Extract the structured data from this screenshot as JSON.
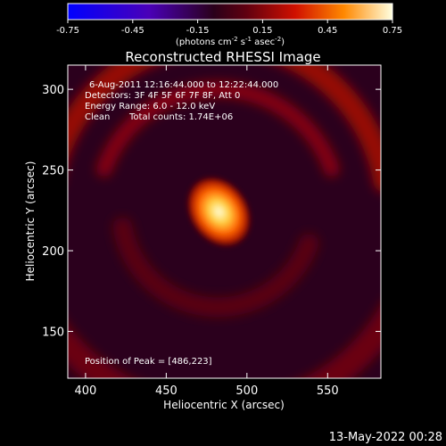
{
  "chart_data": {
    "type": "heatmap",
    "title": "Reconstructed RHESSI Image",
    "xlabel": "Heliocentric X (arcsec)",
    "ylabel": "Heliocentric Y (arcsec)",
    "xlim": [
      389,
      583
    ],
    "ylim": [
      121,
      315
    ],
    "x_ticks": [
      400,
      450,
      500,
      550
    ],
    "y_ticks": [
      150,
      200,
      250,
      300
    ],
    "colorbar": {
      "min": -0.75,
      "max": 0.75,
      "ticks": [
        "-0.75",
        "-0.45",
        "-0.15",
        "0.15",
        "0.45",
        "0.75"
      ],
      "units_prefix": "(photons cm",
      "units_exp1": "-2",
      "units_mid1": " s",
      "units_exp2": "-1",
      "units_mid2": " asec",
      "units_exp3": "-2",
      "units_suffix": ")"
    },
    "annotations": {
      "time_range": "6-Aug-2011 12:16:44.000 to 12:22:44.000",
      "detectors": "Detectors: 3F 4F 5F 6F 7F 8F, Att 0",
      "energy_range": "Energy Range: 6.0 - 12.0 keV",
      "method": "Clean",
      "total_counts": "Total counts: 1.74E+06",
      "peak_position": "Position of Peak = [486,223]"
    },
    "peak": {
      "x": 486,
      "y": 223,
      "value": 0.75
    },
    "features": [
      {
        "kind": "ring-arc",
        "cx": 482,
        "cy": 225,
        "r": 75,
        "start_deg": 200,
        "end_deg": 340,
        "width": 18,
        "value": 0.18
      },
      {
        "kind": "ring-arc",
        "cx": 482,
        "cy": 225,
        "r": 105,
        "start_deg": 190,
        "end_deg": 350,
        "width": 26,
        "value": 0.22
      },
      {
        "kind": "ring-arc",
        "cx": 482,
        "cy": 225,
        "r": 60,
        "start_deg": 20,
        "end_deg": 170,
        "width": 22,
        "value": 0.08
      },
      {
        "kind": "ring-arc",
        "cx": 482,
        "cy": 225,
        "r": 125,
        "start_deg": 30,
        "end_deg": 150,
        "width": 30,
        "value": 0.12
      }
    ],
    "background_value": -0.08,
    "footer_date": "13-May-2022 00:28"
  }
}
